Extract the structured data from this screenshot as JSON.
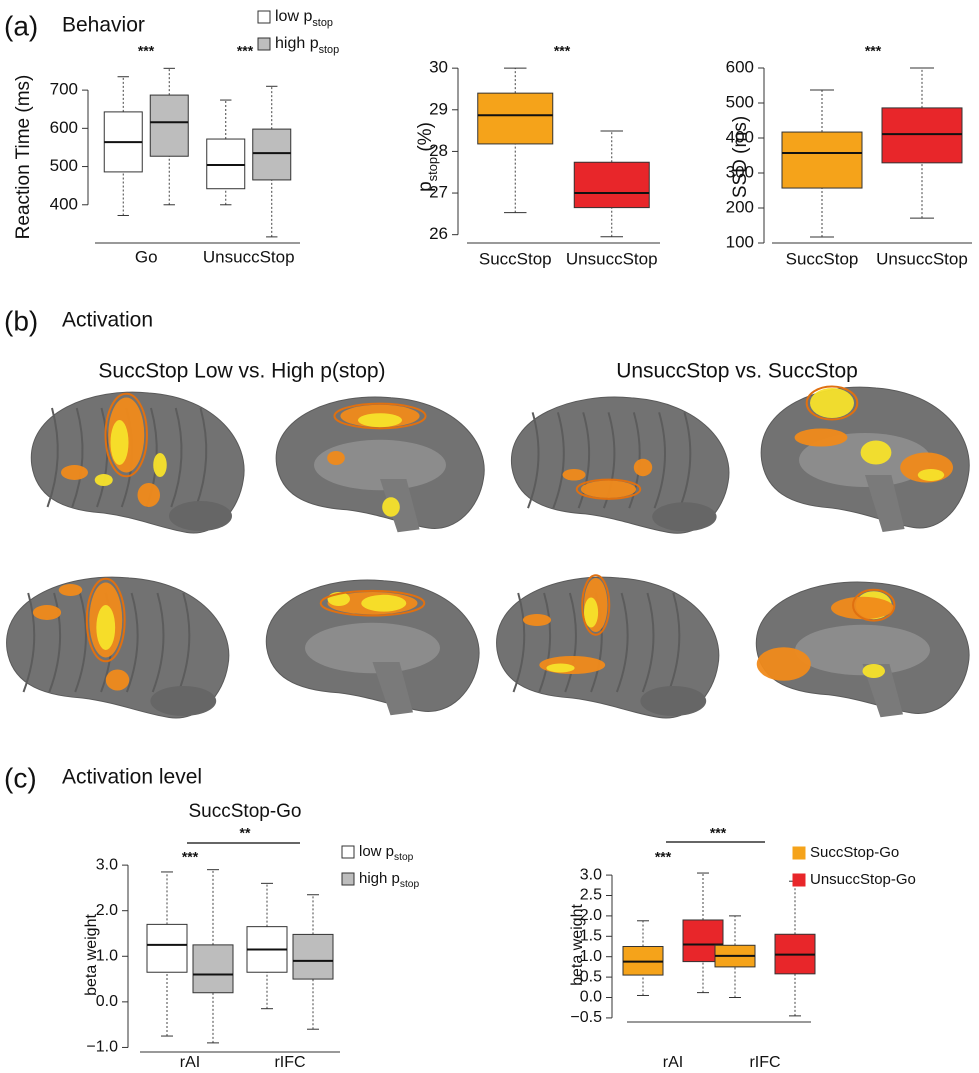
{
  "panels": [
    {
      "label": "(a)",
      "title": "Behavior"
    },
    {
      "label": "(b)",
      "title": "Activation"
    },
    {
      "label": "(c)",
      "title": "Activation level"
    }
  ],
  "brain_titles": [
    "SuccStop Low vs. High p(stop)",
    "UnsuccStop vs. SuccStop"
  ],
  "chart_data": [
    {
      "type": "box",
      "ylabel": "Reaction Time (ms)",
      "categories": [
        "Go",
        "UnsuccStop"
      ],
      "series": [
        {
          "name": "low p",
          "name_subscript": "stop",
          "color": "#ffffff",
          "values": [
            [
              372,
              486,
              564,
              643,
              735
            ],
            [
              400,
              442,
              504,
              572,
              674
            ]
          ]
        },
        {
          "name": "high p",
          "name_subscript": "stop",
          "color": "#bdbdbd",
          "values": [
            [
              400,
              527,
              616,
              687,
              757
            ],
            [
              316,
              465,
              535,
              598,
              710
            ]
          ]
        }
      ],
      "ylim": [
        300,
        750
      ],
      "yticks": [
        400,
        500,
        600,
        700
      ],
      "annotations": [
        "***",
        "***"
      ],
      "legend": "upper right"
    },
    {
      "type": "box",
      "ylabel": "p",
      "ylabel_subscript": "stop",
      "ylabel_suffix": " (%)",
      "categories": [
        "SuccStop",
        "UnsuccStop"
      ],
      "values": [
        [
          26.53,
          28.18,
          28.87,
          29.4,
          30.0
        ],
        [
          25.95,
          26.65,
          27.0,
          27.74,
          28.49
        ]
      ],
      "colors": [
        "#f5a31a",
        "#e8262a"
      ],
      "ylim": [
        25.8,
        30.1
      ],
      "yticks": [
        26,
        27,
        28,
        29,
        30
      ],
      "annotations": [
        "***"
      ]
    },
    {
      "type": "box",
      "ylabel": "SSD (ms)",
      "categories": [
        "SuccStop",
        "UnsuccStop"
      ],
      "values": [
        [
          117,
          257,
          357,
          417,
          537
        ],
        [
          171,
          329,
          411,
          486,
          600
        ]
      ],
      "colors": [
        "#f5a31a",
        "#e8262a"
      ],
      "ylim": [
        100,
        620
      ],
      "yticks": [
        100,
        200,
        300,
        400,
        500,
        600
      ],
      "annotations": [
        "***"
      ]
    },
    {
      "type": "box",
      "title": "SuccStop-Go",
      "ylabel": "beta weight",
      "categories": [
        "rAI",
        "rIFC"
      ],
      "series": [
        {
          "name": "low p",
          "name_subscript": "stop",
          "color": "#ffffff",
          "values": [
            [
              -0.75,
              0.65,
              1.25,
              1.7,
              2.85
            ],
            [
              -0.15,
              0.65,
              1.15,
              1.65,
              2.6
            ]
          ]
        },
        {
          "name": "high p",
          "name_subscript": "stop",
          "color": "#bdbdbd",
          "values": [
            [
              -0.9,
              0.2,
              0.6,
              1.25,
              2.9
            ],
            [
              -0.6,
              0.5,
              0.9,
              1.48,
              2.35
            ]
          ]
        }
      ],
      "ylim": [
        -1.1,
        3.2
      ],
      "yticks": [
        {
          "value": -1,
          "label": "−1.0"
        },
        {
          "value": 0,
          "label": "0.0"
        },
        {
          "value": 1,
          "label": "1.0"
        },
        {
          "value": 2,
          "label": "2.0"
        },
        {
          "value": 3,
          "label": "3.0"
        }
      ],
      "annotations": [
        "***",
        "**"
      ],
      "legend": "upper right"
    },
    {
      "type": "box",
      "ylabel": "beta weight",
      "categories": [
        "rAI",
        "rIFC"
      ],
      "series": [
        {
          "name": "SuccStop-Go",
          "color": "#f5a31a",
          "values": [
            [
              0.05,
              0.55,
              0.88,
              1.25,
              1.88
            ],
            [
              0.0,
              0.75,
              1.02,
              1.28,
              2.0
            ]
          ]
        },
        {
          "name": "UnsuccStop-Go",
          "color": "#e8262a",
          "values": [
            [
              0.12,
              0.88,
              1.3,
              1.9,
              3.05
            ],
            [
              -0.45,
              0.58,
              1.05,
              1.55,
              2.85
            ]
          ]
        }
      ],
      "ylim": [
        -0.6,
        3.1
      ],
      "yticks": [
        {
          "value": -0.5,
          "label": "−0.5"
        },
        {
          "value": 0,
          "label": "0.0"
        },
        {
          "value": 0.5,
          "label": "0.5"
        },
        {
          "value": 1,
          "label": "1.0"
        },
        {
          "value": 1.5,
          "label": "1.5"
        },
        {
          "value": 2,
          "label": "2.0"
        },
        {
          "value": 2.5,
          "label": "2.5"
        },
        {
          "value": 3,
          "label": "3.0"
        }
      ],
      "annotations": [
        "***",
        "***"
      ],
      "legend": "upper right"
    }
  ]
}
